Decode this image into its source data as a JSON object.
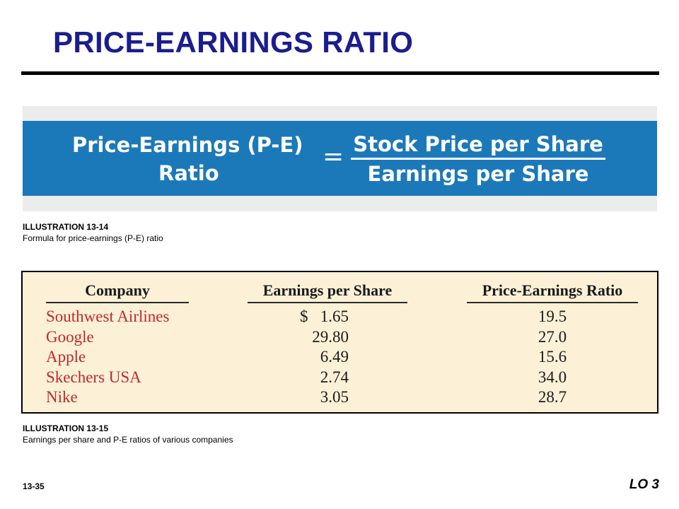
{
  "slide": {
    "title": "PRICE-EARNINGS RATIO",
    "page_number": "13-35",
    "learning_objective": "LO 3"
  },
  "formula": {
    "lhs_line1": "Price-Earnings (P-E)",
    "lhs_line2": "Ratio",
    "equals": "=",
    "numerator": "Stock Price per Share",
    "denominator": "Earnings per Share"
  },
  "illustration_1": {
    "heading": "ILLUSTRATION 13-14",
    "caption": "Formula for price-earnings (P-E) ratio"
  },
  "illustration_2": {
    "heading": "ILLUSTRATION 13-15",
    "caption": "Earnings per share and P-E ratios of various companies"
  },
  "table": {
    "headers": [
      "Company",
      "Earnings per Share",
      "Price-Earnings Ratio"
    ],
    "currency_symbol": "$",
    "rows": [
      {
        "company": "Southwest Airlines",
        "eps": "1.65",
        "pe": "19.5"
      },
      {
        "company": "Google",
        "eps": "29.80",
        "pe": "27.0"
      },
      {
        "company": "Apple",
        "eps": "6.49",
        "pe": "15.6"
      },
      {
        "company": "Skechers USA",
        "eps": "2.74",
        "pe": "34.0"
      },
      {
        "company": "Nike",
        "eps": "3.05",
        "pe": "28.7"
      }
    ]
  },
  "colors": {
    "title": "#1b1d8e",
    "formula_band": "#1c79b9",
    "formula_panel": "#ececec",
    "table_background": "#fcf1d7",
    "company_text": "#c0282e"
  }
}
